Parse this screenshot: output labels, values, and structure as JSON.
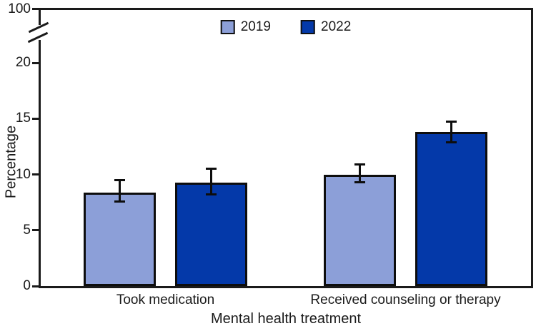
{
  "chart_data": {
    "type": "bar",
    "title": "",
    "categories": [
      "Took medication",
      "Received counseling or therapy"
    ],
    "series": [
      {
        "name": "2019",
        "color": "#8C9FD8",
        "values": [
          8.4,
          10.0
        ],
        "ci_low": [
          7.6,
          9.3
        ],
        "ci_high": [
          9.5,
          10.9
        ]
      },
      {
        "name": "2022",
        "color": "#0439A9",
        "values": [
          9.3,
          13.8
        ],
        "ci_low": [
          8.2,
          12.9
        ],
        "ci_high": [
          10.5,
          14.7
        ]
      }
    ],
    "xlabel": "Mental health treatment",
    "ylabel": "Percentage",
    "yticks": [
      0,
      5,
      10,
      15,
      20
    ],
    "ytick_broken_top": 100,
    "ylim": [
      0,
      20
    ],
    "axis_break": true,
    "error_bars": true,
    "grid": false,
    "legend_position": "top-center",
    "frame_color": "#1a1a1a",
    "text_color": "#1a1a1a"
  }
}
